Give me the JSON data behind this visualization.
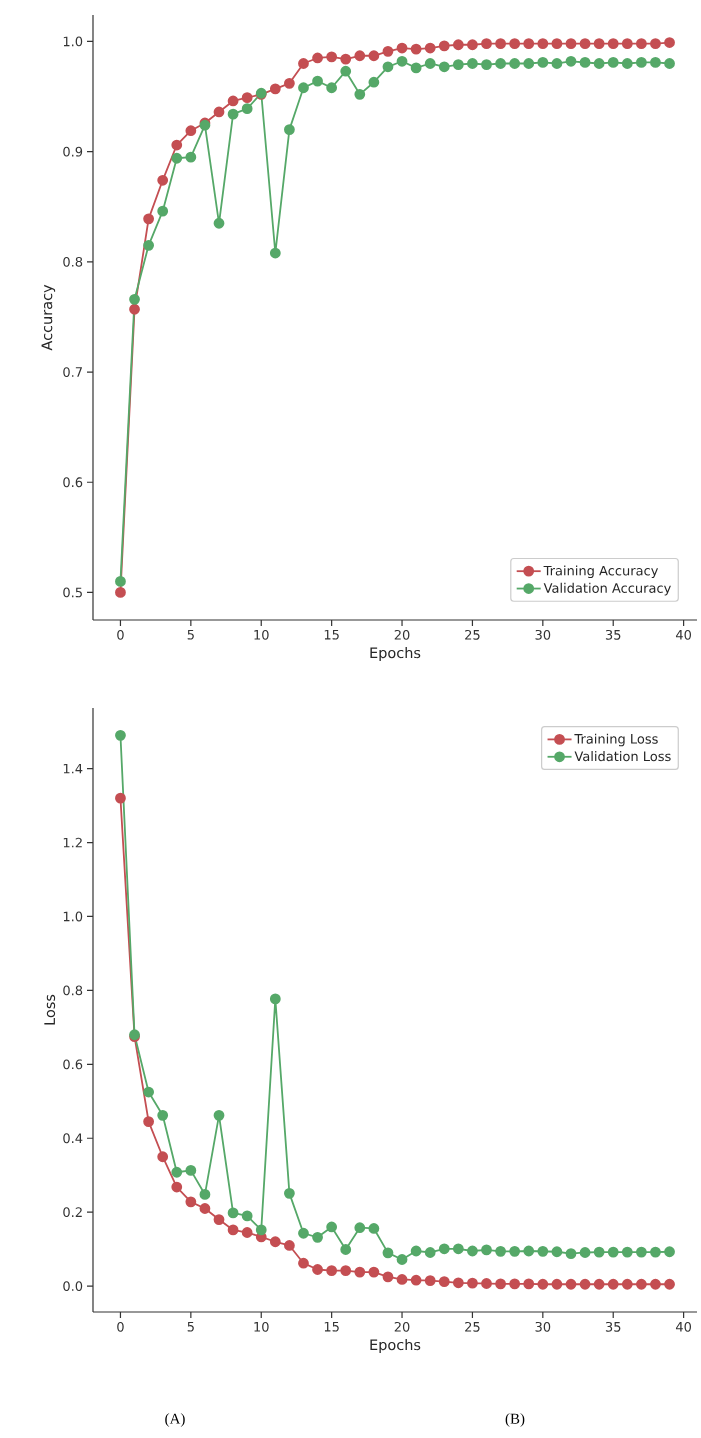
{
  "chart_data": [
    {
      "type": "line",
      "xlabel": "Epochs",
      "ylabel": "Accuracy",
      "x": [
        0,
        1,
        2,
        3,
        4,
        5,
        6,
        7,
        8,
        9,
        10,
        11,
        12,
        13,
        14,
        15,
        16,
        17,
        18,
        19,
        20,
        21,
        22,
        23,
        24,
        25,
        26,
        27,
        28,
        29,
        30,
        31,
        32,
        33,
        34,
        35,
        36,
        37,
        38,
        39
      ],
      "series": [
        {
          "name": "Training Accuracy",
          "color": "#c44e52",
          "values": [
            0.5,
            0.757,
            0.839,
            0.874,
            0.906,
            0.919,
            0.926,
            0.936,
            0.946,
            0.949,
            0.952,
            0.957,
            0.962,
            0.98,
            0.985,
            0.986,
            0.984,
            0.987,
            0.987,
            0.991,
            0.994,
            0.993,
            0.994,
            0.996,
            0.997,
            0.997,
            0.998,
            0.998,
            0.998,
            0.998,
            0.998,
            0.998,
            0.998,
            0.998,
            0.998,
            0.998,
            0.998,
            0.998,
            0.998,
            0.999
          ]
        },
        {
          "name": "Validation Accuracy",
          "color": "#55a868",
          "values": [
            0.51,
            0.766,
            0.815,
            0.846,
            0.894,
            0.895,
            0.924,
            0.835,
            0.934,
            0.939,
            0.953,
            0.808,
            0.92,
            0.958,
            0.964,
            0.958,
            0.973,
            0.952,
            0.963,
            0.977,
            0.982,
            0.976,
            0.98,
            0.977,
            0.979,
            0.98,
            0.979,
            0.98,
            0.98,
            0.98,
            0.981,
            0.98,
            0.982,
            0.981,
            0.98,
            0.981,
            0.98,
            0.981,
            0.981,
            0.98
          ]
        }
      ],
      "xlim": [
        -1.95,
        40.95
      ],
      "ylim": [
        0.475,
        1.024
      ],
      "xticks": [
        0,
        5,
        10,
        15,
        20,
        25,
        30,
        35,
        40
      ],
      "yticks": [
        {
          "value": 0.5,
          "label": "0.5"
        },
        {
          "value": 0.6,
          "label": "0.6"
        },
        {
          "value": 0.7,
          "label": "0.7"
        },
        {
          "value": 0.8,
          "label": "0.8"
        },
        {
          "value": 0.9,
          "label": "0.9"
        },
        {
          "value": 1.0,
          "label": "1.0"
        }
      ],
      "grid": false,
      "legend": "bottom right",
      "marker": "circle",
      "line_style": "solid"
    },
    {
      "type": "line",
      "xlabel": "Epochs",
      "ylabel": "Loss",
      "x": [
        0,
        1,
        2,
        3,
        4,
        5,
        6,
        7,
        8,
        9,
        10,
        11,
        12,
        13,
        14,
        15,
        16,
        17,
        18,
        19,
        20,
        21,
        22,
        23,
        24,
        25,
        26,
        27,
        28,
        29,
        30,
        31,
        32,
        33,
        34,
        35,
        36,
        37,
        38,
        39
      ],
      "series": [
        {
          "name": "Training Loss",
          "color": "#c44e52",
          "values": [
            1.32,
            0.675,
            0.445,
            0.35,
            0.268,
            0.228,
            0.21,
            0.18,
            0.152,
            0.145,
            0.133,
            0.12,
            0.11,
            0.062,
            0.045,
            0.042,
            0.042,
            0.038,
            0.038,
            0.025,
            0.018,
            0.016,
            0.015,
            0.012,
            0.009,
            0.008,
            0.007,
            0.006,
            0.006,
            0.006,
            0.005,
            0.005,
            0.005,
            0.005,
            0.005,
            0.005,
            0.005,
            0.005,
            0.005,
            0.005
          ]
        },
        {
          "name": "Validation Loss",
          "color": "#55a868",
          "values": [
            1.49,
            0.68,
            0.525,
            0.462,
            0.308,
            0.313,
            0.248,
            0.462,
            0.198,
            0.19,
            0.152,
            0.777,
            0.251,
            0.143,
            0.132,
            0.16,
            0.099,
            0.158,
            0.156,
            0.09,
            0.072,
            0.095,
            0.091,
            0.101,
            0.101,
            0.095,
            0.098,
            0.094,
            0.094,
            0.095,
            0.094,
            0.093,
            0.088,
            0.091,
            0.092,
            0.092,
            0.092,
            0.092,
            0.092,
            0.093
          ]
        }
      ],
      "xlim": [
        -1.95,
        40.95
      ],
      "ylim": [
        -0.07,
        1.564
      ],
      "xticks": [
        0,
        5,
        10,
        15,
        20,
        25,
        30,
        35,
        40
      ],
      "yticks": [
        {
          "value": 0.0,
          "label": "0.0"
        },
        {
          "value": 0.2,
          "label": "0.2"
        },
        {
          "value": 0.4,
          "label": "0.4"
        },
        {
          "value": 0.6,
          "label": "0.6"
        },
        {
          "value": 0.8,
          "label": "0.8"
        },
        {
          "value": 1.0,
          "label": "1.0"
        },
        {
          "value": 1.2,
          "label": "1.2"
        },
        {
          "value": 1.4,
          "label": "1.4"
        }
      ],
      "grid": false,
      "legend": "top right",
      "marker": "circle",
      "line_style": "solid",
      "annotations": [
        "(A)",
        "(B)"
      ]
    }
  ]
}
